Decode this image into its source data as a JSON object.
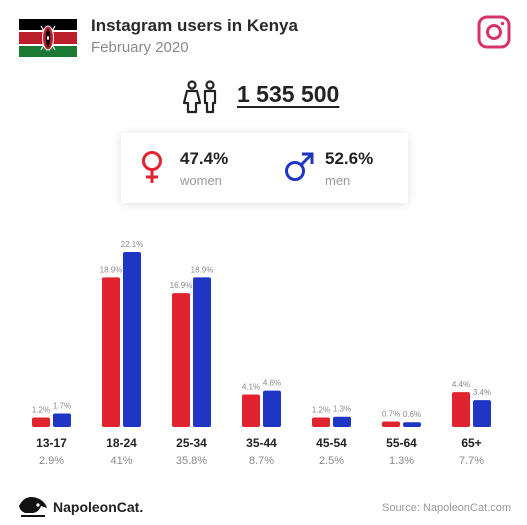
{
  "header": {
    "title": "Instagram users in Kenya",
    "subtitle": "February 2020",
    "flag_icon": "kenya-flag-icon",
    "platform_icon": "instagram-icon"
  },
  "total": {
    "value": "1 535 500",
    "icon": "people-icon"
  },
  "gender": {
    "women": {
      "pct": "47.4%",
      "label": "women",
      "icon": "female-icon",
      "color": "#e0232e"
    },
    "men": {
      "pct": "52.6%",
      "label": "men",
      "icon": "male-icon",
      "color": "#1f35c4"
    }
  },
  "chart_data": {
    "type": "bar",
    "categories": [
      "13-17",
      "18-24",
      "25-34",
      "35-44",
      "45-54",
      "55-64",
      "65+"
    ],
    "category_totals": [
      "2.9%",
      "41%",
      "35.8%",
      "8.7%",
      "2.5%",
      "1.3%",
      "7.7%"
    ],
    "series": [
      {
        "values": [
          1.2,
          18.9,
          16.9,
          4.1,
          1.2,
          0.7,
          4.4
        ],
        "labels": [
          "1.2%",
          "18.9%",
          "16.9%",
          "4.1%",
          "1.2%",
          "0.7%",
          "4.4%"
        ],
        "color": "#e0232e"
      },
      {
        "values": [
          1.7,
          22.1,
          18.9,
          4.6,
          1.3,
          0.6,
          3.4
        ],
        "labels": [
          "1.7%",
          "22.1%",
          "18.9%",
          "4.6%",
          "1.3%",
          "0.6%",
          "3.4%"
        ],
        "color": "#1f35c4"
      }
    ],
    "ylim": [
      0,
      22.1
    ],
    "grid": false,
    "legend": "none"
  },
  "footer": {
    "brand": "NapoleonCat.",
    "source": "Source: NapoleonCat.com",
    "logo_icon": "napoleoncat-logo-icon"
  }
}
